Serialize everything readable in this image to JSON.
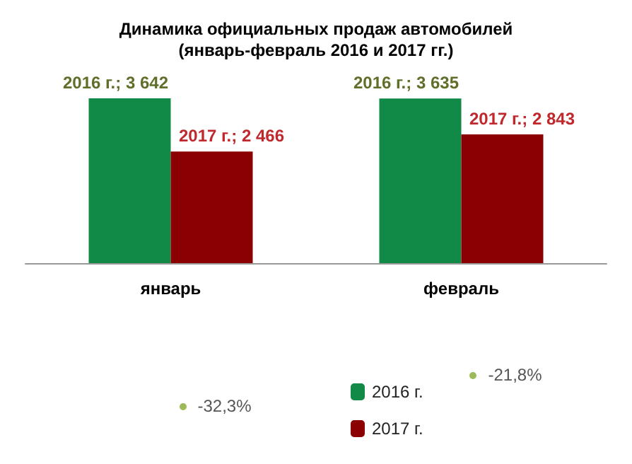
{
  "chart_data": {
    "type": "bar",
    "title": "Динамика официальных продаж автомобилей\n(январь-февраль 2016 и 2017 гг.)",
    "categories": [
      "январь",
      "февраль"
    ],
    "series": [
      {
        "name": "2016 г.",
        "color": "#108a46",
        "values": [
          3642,
          3635
        ],
        "value_labels": [
          "2016 г.; 3 642",
          "2016 г.; 3 635"
        ]
      },
      {
        "name": "2017 г.",
        "color": "#8b0000",
        "values": [
          2466,
          2843
        ],
        "value_labels": [
          "2017 г.; 2 466",
          "2017 г.; 2 843"
        ]
      }
    ],
    "annotations": [
      "-32,3%",
      "-21,8%"
    ],
    "tick_labels": "x",
    "legend": "bottom"
  }
}
